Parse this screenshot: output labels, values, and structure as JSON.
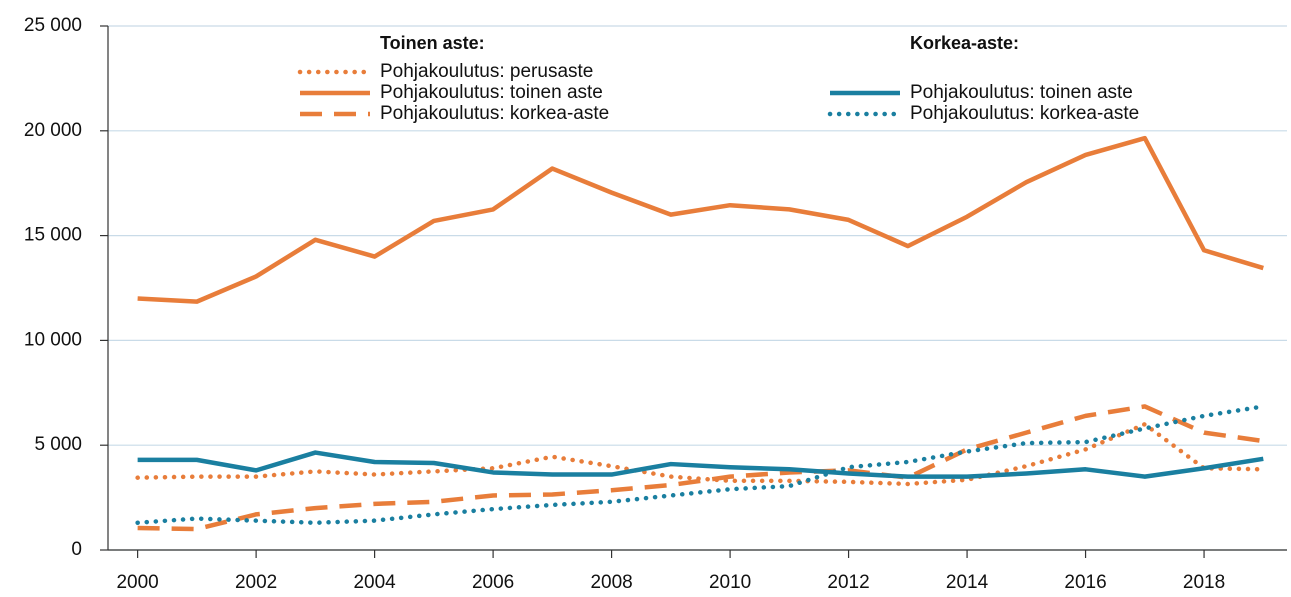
{
  "chart_data": {
    "type": "line",
    "x": [
      2000,
      2001,
      2002,
      2003,
      2004,
      2005,
      2006,
      2007,
      2008,
      2009,
      2010,
      2011,
      2012,
      2013,
      2014,
      2015,
      2016,
      2017,
      2018,
      2019
    ],
    "xlim": [
      1999.5,
      2019.4
    ],
    "xticks": [
      2000,
      2002,
      2004,
      2006,
      2008,
      2010,
      2012,
      2014,
      2016,
      2018
    ],
    "ylim": [
      0,
      25000
    ],
    "yticks": [
      0,
      {
        "value": 5000,
        "label": "5 000"
      },
      {
        "value": 10000,
        "label": "10 000"
      },
      {
        "value": 15000,
        "label": "15 000"
      },
      {
        "value": 20000,
        "label": "20 000"
      },
      {
        "value": 25000,
        "label": "25 000"
      }
    ],
    "grid": true,
    "groups": [
      {
        "title": "Toinen aste:",
        "series": [
          {
            "name": "Pohjakoulutus: perusaste",
            "color": "#e87d3a",
            "style": "dotted",
            "values": [
              3450,
              3500,
              3500,
              3750,
              3600,
              3750,
              3900,
              4450,
              4000,
              3500,
              3300,
              3300,
              3250,
              3150,
              3350,
              4000,
              4800,
              6000,
              3900,
              3850
            ]
          },
          {
            "name": "Pohjakoulutus: toinen aste",
            "color": "#e87d3a",
            "style": "solid",
            "values": [
              12000,
              11850,
              13050,
              14800,
              14000,
              15700,
              16250,
              18200,
              17050,
              16000,
              16450,
              16250,
              15750,
              14500,
              15900,
              17550,
              18850,
              19650,
              14300,
              13450
            ]
          },
          {
            "name": "Pohjakoulutus: korkea-aste",
            "color": "#e87d3a",
            "style": "dashed",
            "values": [
              1050,
              1000,
              1700,
              2000,
              2200,
              2300,
              2600,
              2650,
              2850,
              3100,
              3500,
              3700,
              3800,
              3450,
              4800,
              5600,
              6400,
              6850,
              5600,
              5200
            ]
          }
        ]
      },
      {
        "title": "Korkea-aste:",
        "series": [
          {
            "name": "Pohjakoulutus: toinen aste",
            "color": "#1a7fa0",
            "style": "solid",
            "values": [
              4300,
              4300,
              3800,
              4650,
              4200,
              4150,
              3700,
              3600,
              3600,
              4100,
              3950,
              3850,
              3650,
              3500,
              3500,
              3650,
              3850,
              3500,
              3900,
              4350
            ]
          },
          {
            "name": "Pohjakoulutus: korkea-aste",
            "color": "#1a7fa0",
            "style": "dotted",
            "values": [
              1300,
              1500,
              1400,
              1300,
              1400,
              1700,
              1950,
              2150,
              2300,
              2600,
              2900,
              3050,
              3950,
              4200,
              4700,
              5100,
              5150,
              5800,
              6400,
              6850
            ]
          }
        ]
      }
    ]
  }
}
